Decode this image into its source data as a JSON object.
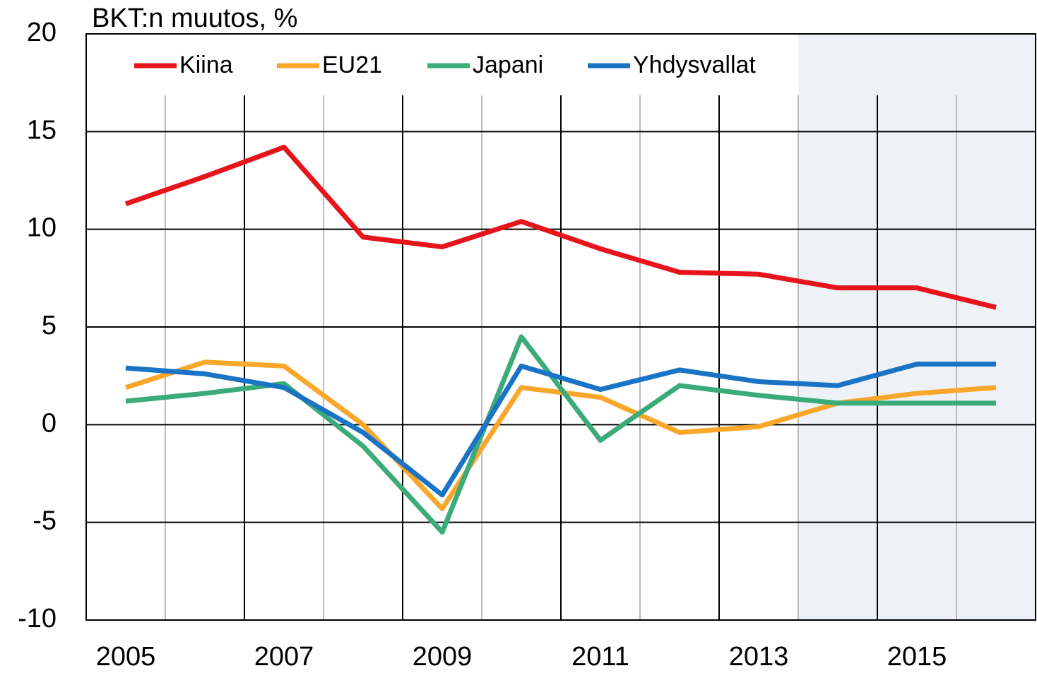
{
  "chart_data": {
    "type": "line",
    "title": "BKT:n muutos, %",
    "x": [
      2005,
      2006,
      2007,
      2008,
      2009,
      2010,
      2011,
      2012,
      2013,
      2014,
      2015,
      2016
    ],
    "xlim": [
      2004.5,
      2016.5
    ],
    "xticks": [
      2005,
      2007,
      2009,
      2011,
      2013,
      2015
    ],
    "xgrid": [
      2005.5,
      2006.5,
      2007.5,
      2008.5,
      2009.5,
      2010.5,
      2011.5,
      2012.5,
      2013.5,
      2014.5,
      2015.5
    ],
    "shade_xlim": [
      2013.5,
      2016.5
    ],
    "shade_color": "#eef2f7",
    "ylim": [
      -10,
      20
    ],
    "yticks": [
      -10,
      -5,
      0,
      5,
      10,
      15,
      20
    ],
    "grid": true,
    "legend": "top",
    "series": [
      {
        "name": "Kiina",
        "color": "#e8141b",
        "values": [
          11.3,
          12.7,
          14.2,
          9.6,
          9.1,
          10.4,
          9.0,
          7.8,
          7.7,
          7.0,
          7.0,
          6.0
        ]
      },
      {
        "name": "EU21",
        "color": "#f9a72b",
        "values": [
          1.9,
          3.2,
          3.0,
          0.0,
          -4.3,
          1.9,
          1.4,
          -0.4,
          -0.1,
          1.1,
          1.6,
          1.9
        ]
      },
      {
        "name": "Japani",
        "color": "#3cab7a",
        "values": [
          1.2,
          1.6,
          2.1,
          -1.1,
          -5.5,
          4.5,
          -0.8,
          2.0,
          1.5,
          1.1,
          1.1,
          1.1
        ]
      },
      {
        "name": "Yhdysvallat",
        "color": "#1a73c4",
        "values": [
          2.9,
          2.6,
          1.9,
          -0.4,
          -3.6,
          3.0,
          1.8,
          2.8,
          2.2,
          2.0,
          3.1,
          3.1
        ]
      }
    ]
  }
}
